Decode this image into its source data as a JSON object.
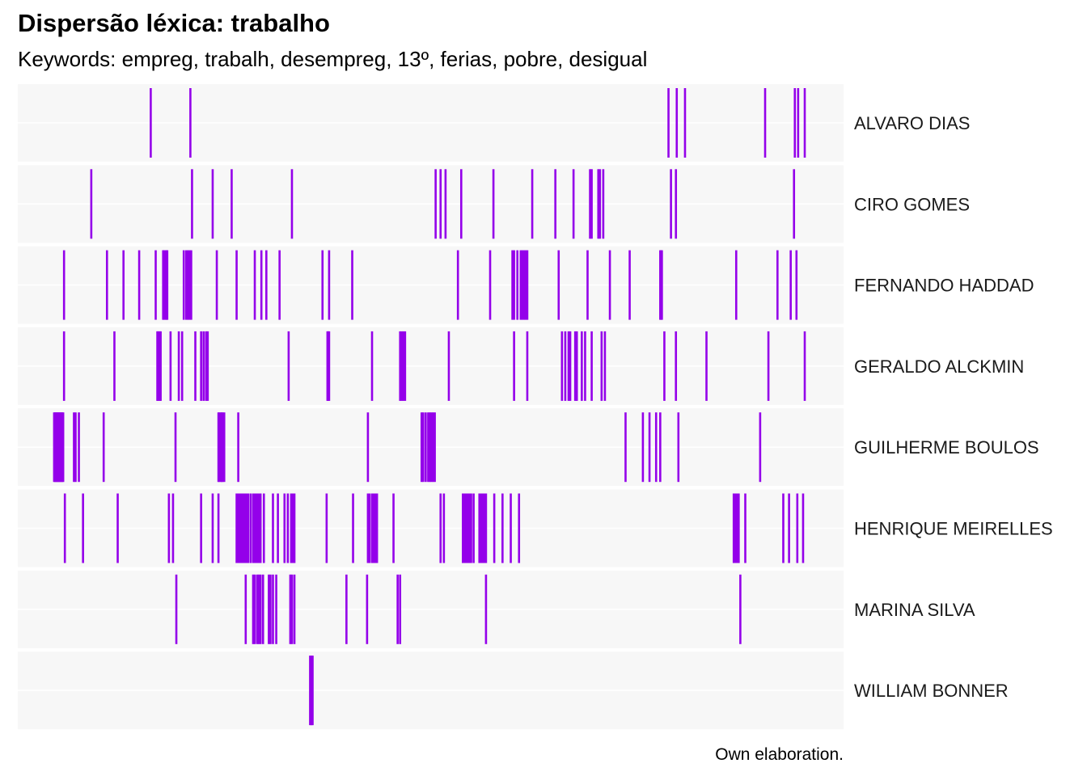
{
  "chart_data": {
    "type": "lexical-dispersion",
    "title": "Dispersão léxica: trabalho",
    "subtitle": "Keywords: empreg, trabalh, desempreg, 13º, ferias, pobre, desigual",
    "caption": "Own elaboration.",
    "xlabel": "",
    "ylabel": "",
    "xlim": [
      0,
      1
    ],
    "grid": true,
    "facet_label_position": "right",
    "bar_color": "#9400EA",
    "panel_background": "#F7F7F7",
    "facets": [
      {
        "name": "ALVARO DIAS",
        "positions": [
          0.161,
          0.209,
          0.788,
          0.798,
          0.808,
          0.905,
          0.941,
          0.945,
          0.953
        ]
      },
      {
        "name": "CIRO GOMES",
        "positions": [
          0.089,
          0.211,
          0.236,
          0.259,
          0.332,
          0.506,
          0.512,
          0.518,
          0.537,
          0.576,
          0.623,
          0.651,
          0.673,
          0.693,
          0.695,
          0.703,
          0.705,
          0.709,
          0.791,
          0.797,
          0.94
        ]
      },
      {
        "name": "FERNANDO HADDAD",
        "positions": [
          0.056,
          0.108,
          0.128,
          0.147,
          0.167,
          0.176,
          0.177,
          0.179,
          0.18,
          0.181,
          0.201,
          0.204,
          0.206,
          0.208,
          0.21,
          0.241,
          0.265,
          0.287,
          0.295,
          0.301,
          0.317,
          0.369,
          0.377,
          0.405,
          0.533,
          0.572,
          0.599,
          0.601,
          0.605,
          0.609,
          0.611,
          0.613,
          0.615,
          0.617,
          0.655,
          0.69,
          0.717,
          0.741,
          0.778,
          0.779,
          0.78,
          0.87,
          0.92,
          0.936,
          0.943
        ]
      },
      {
        "name": "GERALDO ALCKMIN",
        "positions": [
          0.056,
          0.117,
          0.169,
          0.17,
          0.172,
          0.173,
          0.185,
          0.195,
          0.199,
          0.215,
          0.222,
          0.225,
          0.228,
          0.23,
          0.328,
          0.375,
          0.376,
          0.377,
          0.429,
          0.463,
          0.465,
          0.467,
          0.469,
          0.522,
          0.601,
          0.617,
          0.659,
          0.663,
          0.667,
          0.669,
          0.675,
          0.677,
          0.683,
          0.687,
          0.695,
          0.707,
          0.711,
          0.783,
          0.797,
          0.834,
          0.909,
          0.953
        ]
      },
      {
        "name": "GUILHERME BOULOS",
        "positions": [
          0.044,
          0.045,
          0.046,
          0.047,
          0.048,
          0.049,
          0.05,
          0.051,
          0.052,
          0.053,
          0.054,
          0.055,
          0.068,
          0.07,
          0.074,
          0.104,
          0.191,
          0.243,
          0.244,
          0.246,
          0.247,
          0.248,
          0.25,
          0.267,
          0.424,
          0.489,
          0.491,
          0.494,
          0.497,
          0.499,
          0.501,
          0.503,
          0.505,
          0.736,
          0.757,
          0.765,
          0.773,
          0.778,
          0.8,
          0.899
        ]
      },
      {
        "name": "HENRIQUE MEIRELLES",
        "positions": [
          0.057,
          0.079,
          0.121,
          0.183,
          0.188,
          0.222,
          0.236,
          0.243,
          0.265,
          0.266,
          0.267,
          0.269,
          0.27,
          0.272,
          0.274,
          0.275,
          0.277,
          0.279,
          0.282,
          0.285,
          0.287,
          0.289,
          0.291,
          0.292,
          0.294,
          0.298,
          0.309,
          0.315,
          0.323,
          0.327,
          0.331,
          0.333,
          0.335,
          0.374,
          0.406,
          0.424,
          0.426,
          0.429,
          0.431,
          0.433,
          0.435,
          0.455,
          0.512,
          0.516,
          0.539,
          0.541,
          0.543,
          0.545,
          0.547,
          0.549,
          0.552,
          0.559,
          0.561,
          0.563,
          0.565,
          0.567,
          0.577,
          0.587,
          0.597,
          0.607,
          0.867,
          0.869,
          0.871,
          0.873,
          0.881,
          0.927,
          0.934,
          0.944,
          0.951
        ]
      },
      {
        "name": "MARINA SILVA",
        "positions": [
          0.192,
          0.276,
          0.285,
          0.287,
          0.29,
          0.292,
          0.294,
          0.297,
          0.304,
          0.306,
          0.309,
          0.313,
          0.33,
          0.332,
          0.335,
          0.398,
          0.423,
          0.46,
          0.463,
          0.567,
          0.875
        ]
      },
      {
        "name": "WILLIAM BONNER",
        "positions": [
          0.354,
          0.355,
          0.356,
          0.357
        ]
      }
    ]
  }
}
